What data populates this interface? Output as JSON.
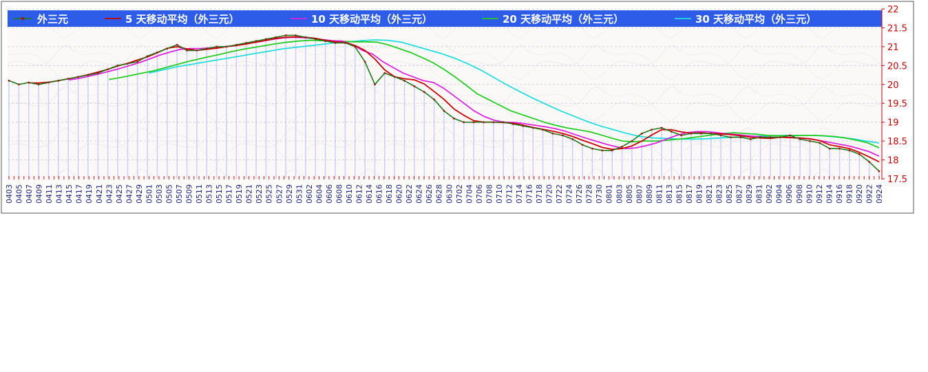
{
  "chart_data": {
    "type": "line",
    "ylim": [
      17.5,
      22
    ],
    "yticks": [
      "17.5",
      "18",
      "18.5",
      "19",
      "19.5",
      "20",
      "20.5",
      "21",
      "21.5",
      "22"
    ],
    "x_labels": [
      "0403",
      "0405",
      "0407",
      "0409",
      "0411",
      "0413",
      "0415",
      "0417",
      "0419",
      "0421",
      "0423",
      "0425",
      "0427",
      "0429",
      "0501",
      "0503",
      "0505",
      "0507",
      "0509",
      "0511",
      "0513",
      "0515",
      "0517",
      "0519",
      "0521",
      "0523",
      "0525",
      "0527",
      "0529",
      "0531",
      "0602",
      "0604",
      "0606",
      "0608",
      "0610",
      "0612",
      "0614",
      "0616",
      "0618",
      "0620",
      "0622",
      "0624",
      "0626",
      "0628",
      "0630",
      "0702",
      "0704",
      "0706",
      "0708",
      "0710",
      "0712",
      "0714",
      "0716",
      "0718",
      "0720",
      "0722",
      "0724",
      "0726",
      "0728",
      "0730",
      "0801",
      "0803",
      "0805",
      "0807",
      "0809",
      "0811",
      "0813",
      "0815",
      "0817",
      "0819",
      "0821",
      "0823",
      "0825",
      "0827",
      "0829",
      "0831",
      "0902",
      "0904",
      "0906",
      "0908",
      "0910",
      "0912",
      "0914",
      "0916",
      "0918",
      "0920",
      "0922",
      "0924"
    ],
    "grid": true,
    "legend_position": "top",
    "series": [
      {
        "name": "外三元",
        "color": "#1a7a1a",
        "marker_color": "#aa1111",
        "start": "0403",
        "values": [
          20.1,
          20.0,
          20.05,
          20.0,
          20.05,
          20.1,
          20.15,
          20.2,
          20.25,
          20.3,
          20.4,
          20.5,
          20.55,
          20.6,
          20.75,
          20.85,
          20.95,
          21.05,
          20.9,
          20.9,
          20.95,
          21.0,
          21.0,
          21.05,
          21.1,
          21.15,
          21.2,
          21.25,
          21.3,
          21.3,
          21.25,
          21.2,
          21.15,
          21.1,
          21.1,
          21.0,
          20.6,
          20.0,
          20.3,
          20.2,
          20.1,
          19.95,
          19.8,
          19.6,
          19.3,
          19.1,
          19.0,
          19.0,
          19.0,
          19.0,
          19.0,
          18.95,
          18.9,
          18.85,
          18.8,
          18.7,
          18.65,
          18.55,
          18.4,
          18.3,
          18.25,
          18.25,
          18.35,
          18.5,
          18.7,
          18.8,
          18.85,
          18.75,
          18.65,
          18.7,
          18.7,
          18.7,
          18.65,
          18.6,
          18.6,
          18.55,
          18.6,
          18.6,
          18.6,
          18.65,
          18.55,
          18.5,
          18.45,
          18.3,
          18.3,
          18.25,
          18.15,
          17.95,
          17.7
        ]
      },
      {
        "name": "5 天移动平均（外三元）",
        "color": "#cc0000",
        "start": "0407",
        "values": [
          20.04,
          20.04,
          20.06,
          20.1,
          20.15,
          20.2,
          20.26,
          20.33,
          20.4,
          20.49,
          20.56,
          20.65,
          20.73,
          20.84,
          20.96,
          21.0,
          20.94,
          20.9,
          20.93,
          20.96,
          21.0,
          21.03,
          21.07,
          21.12,
          21.17,
          21.22,
          21.25,
          21.26,
          21.25,
          21.22,
          21.17,
          21.13,
          21.11,
          21.03,
          20.9,
          20.67,
          20.38,
          20.2,
          20.15,
          20.12,
          20.01,
          19.81,
          19.6,
          19.35,
          19.18,
          19.04,
          19.0,
          19.0,
          18.99,
          18.97,
          18.92,
          18.86,
          18.81,
          18.76,
          18.7,
          18.62,
          18.52,
          18.43,
          18.33,
          18.28,
          18.3,
          18.37,
          18.5,
          18.66,
          18.8,
          18.8,
          18.74,
          18.71,
          18.72,
          18.7,
          18.69,
          18.67,
          18.64,
          18.6,
          18.58,
          18.57,
          18.6,
          18.59,
          18.58,
          18.56,
          18.51,
          18.4,
          18.35,
          18.3,
          18.2,
          18.08,
          17.95
        ]
      },
      {
        "name": "10 天移动平均（外三元）",
        "color": "#dd22dd",
        "start": "0415",
        "values": [
          20.12,
          20.16,
          20.22,
          20.28,
          20.35,
          20.42,
          20.5,
          20.58,
          20.68,
          20.78,
          20.86,
          20.93,
          20.95,
          20.95,
          20.97,
          20.99,
          21.02,
          21.06,
          21.1,
          21.14,
          21.19,
          21.23,
          21.25,
          21.24,
          21.22,
          21.19,
          21.16,
          21.15,
          21.05,
          20.9,
          20.8,
          20.6,
          20.45,
          20.3,
          20.2,
          20.1,
          20.05,
          19.9,
          19.7,
          19.5,
          19.3,
          19.15,
          19.05,
          19.0,
          18.99,
          18.96,
          18.92,
          18.88,
          18.83,
          18.76,
          18.67,
          18.58,
          18.5,
          18.42,
          18.35,
          18.3,
          18.32,
          18.38,
          18.45,
          18.55,
          18.65,
          18.72,
          18.75,
          18.75,
          18.72,
          18.69,
          18.67,
          18.64,
          18.62,
          18.6,
          18.6,
          18.6,
          18.58,
          18.56,
          18.52,
          18.47,
          18.42,
          18.37,
          18.3,
          18.22,
          18.1
        ]
      },
      {
        "name": "20 天移动平均（外三元）",
        "color": "#22cc22",
        "start": "0423",
        "values": [
          20.13,
          20.18,
          20.24,
          20.3,
          20.36,
          20.44,
          20.52,
          20.6,
          20.67,
          20.74,
          20.8,
          20.87,
          20.93,
          20.98,
          21.03,
          21.08,
          21.12,
          21.15,
          21.17,
          21.16,
          21.15,
          21.14,
          21.13,
          21.13,
          21.12,
          21.05,
          20.95,
          20.85,
          20.72,
          20.58,
          20.4,
          20.2,
          19.98,
          19.75,
          19.6,
          19.45,
          19.3,
          19.2,
          19.1,
          19.0,
          18.92,
          18.85,
          18.8,
          18.75,
          18.67,
          18.58,
          18.5,
          18.48,
          18.5,
          18.5,
          18.52,
          18.55,
          18.58,
          18.62,
          18.66,
          18.7,
          18.72,
          18.7,
          18.68,
          18.65,
          18.64,
          18.64,
          18.65,
          18.65,
          18.64,
          18.62,
          18.58,
          18.52,
          18.45,
          18.32
        ]
      },
      {
        "name": "30 天移动平均（外三元）",
        "color": "#22dddd",
        "start": "0501",
        "values": [
          20.3,
          20.38,
          20.46,
          20.52,
          20.58,
          20.64,
          20.7,
          20.76,
          20.82,
          20.88,
          20.94,
          20.98,
          21.02,
          21.06,
          21.1,
          21.13,
          21.16,
          21.18,
          21.17,
          21.12,
          21.02,
          20.92,
          20.82,
          20.7,
          20.55,
          20.38,
          20.18,
          19.98,
          19.8,
          19.62,
          19.46,
          19.3,
          19.16,
          19.02,
          18.9,
          18.8,
          18.7,
          18.62,
          18.58,
          18.57,
          18.55,
          18.55,
          18.56,
          18.58,
          18.6,
          18.62,
          18.63,
          18.64,
          18.65,
          18.65,
          18.65,
          18.63,
          18.6,
          18.56,
          18.5,
          18.45
        ]
      }
    ]
  }
}
